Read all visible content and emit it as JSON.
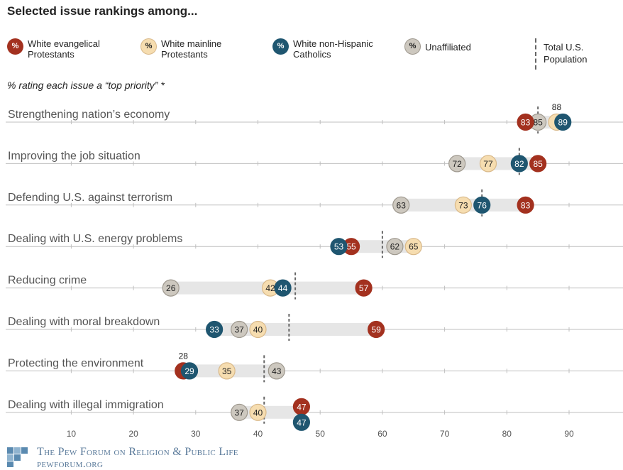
{
  "title": "Selected issue rankings among...",
  "subtitle": "% rating each issue a “top priority” *",
  "legend": {
    "evangelical": "White evangelical Protestants",
    "mainline": "White mainline Protestants",
    "catholic": "White non-Hispanic Catholics",
    "unaffiliated": "Unaffiliated",
    "total": "Total U.S. Population",
    "dot_symbol": "%"
  },
  "footer": {
    "org": "The Pew Forum on Religion & Public Life",
    "site": "pewforum.org"
  },
  "colors": {
    "evangelical": "#a3311f",
    "mainline": "#f6ddb0",
    "catholic": "#1f5670",
    "unaffiliated": "#cdc8bf",
    "range_bar": "#e6e6e6",
    "axis": "#bfbfbf"
  },
  "chart_data": {
    "type": "scatter",
    "title": "Selected issue rankings among...",
    "subtitle": "% rating each issue a “top priority” *",
    "xlim": [
      0,
      100
    ],
    "x_ticks": [
      10,
      20,
      30,
      40,
      50,
      60,
      70,
      80,
      90
    ],
    "series_order": [
      "evangelical",
      "mainline",
      "catholic",
      "unaffiliated"
    ],
    "series": [
      {
        "key": "evangelical",
        "name": "White evangelical Protestants"
      },
      {
        "key": "mainline",
        "name": "White mainline Protestants"
      },
      {
        "key": "catholic",
        "name": "White non-Hispanic Catholics"
      },
      {
        "key": "unaffiliated",
        "name": "Unaffiliated"
      }
    ],
    "issues": [
      {
        "label": "Strengthening nation’s economy",
        "evangelical": 83,
        "mainline": 88,
        "catholic": 89,
        "unaffiliated": 85,
        "total": 85
      },
      {
        "label": "Improving the job situation",
        "evangelical": 85,
        "mainline": 77,
        "catholic": 82,
        "unaffiliated": 72,
        "total": 82
      },
      {
        "label": "Defending U.S. against terrorism",
        "evangelical": 83,
        "mainline": 73,
        "catholic": 76,
        "unaffiliated": 63,
        "total": 76
      },
      {
        "label": "Dealing with U.S. energy problems",
        "evangelical": 55,
        "mainline": 65,
        "catholic": 53,
        "unaffiliated": 62,
        "total": 60
      },
      {
        "label": "Reducing crime",
        "evangelical": 57,
        "mainline": 42,
        "catholic": 44,
        "unaffiliated": 26,
        "total": 46
      },
      {
        "label": "Dealing with moral breakdown",
        "evangelical": 59,
        "mainline": 40,
        "catholic": 33,
        "unaffiliated": 37,
        "total": 45
      },
      {
        "label": "Protecting the environment",
        "evangelical": 28,
        "mainline": 35,
        "catholic": 29,
        "unaffiliated": 43,
        "total": 41
      },
      {
        "label": "Dealing with illegal immigration",
        "evangelical": 47,
        "mainline": 40,
        "catholic": 47,
        "unaffiliated": 37,
        "total": 41
      }
    ],
    "grid": false,
    "legend_position": "top"
  }
}
